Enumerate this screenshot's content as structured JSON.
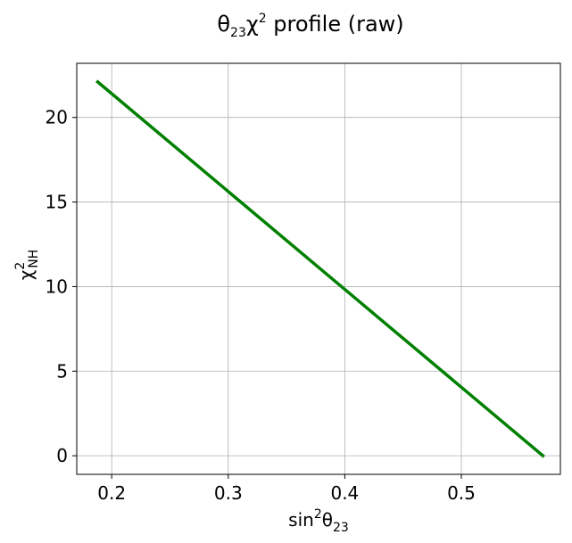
{
  "chart_data": {
    "type": "line",
    "title": {
      "base": "θ",
      "sub": "23",
      "chi": "χ",
      "sup": "2",
      "rest": " profile (raw)"
    },
    "xlabel": {
      "base": "sin",
      "sup": "2",
      "theta": "θ",
      "sub": "23"
    },
    "ylabel": {
      "base": "χ",
      "sup": "2",
      "sub": "NH"
    },
    "xlim": [
      0.17,
      0.585
    ],
    "ylim": [
      -1.1,
      23.2
    ],
    "xticks": [
      0.2,
      0.3,
      0.4,
      0.5
    ],
    "xtick_labels": [
      "0.2",
      "0.3",
      "0.4",
      "0.5"
    ],
    "yticks": [
      0,
      5,
      10,
      15,
      20
    ],
    "ytick_labels": [
      "0",
      "5",
      "10",
      "15",
      "20"
    ],
    "grid": true,
    "series": [
      {
        "color": "#008000",
        "x": [
          0.188,
          0.57
        ],
        "y": [
          22.1,
          0.0
        ]
      }
    ]
  }
}
